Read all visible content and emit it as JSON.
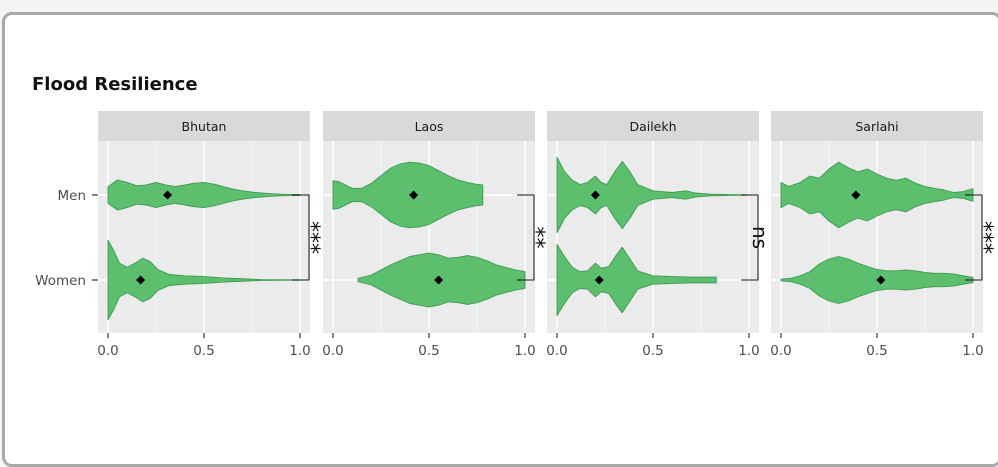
{
  "chart_data": {
    "type": "violin",
    "title": "Flood Resilience",
    "categories": [
      "Men",
      "Women"
    ],
    "xlim": [
      0,
      1
    ],
    "x_ticks": [
      "0.0",
      "0.5",
      "1.0"
    ],
    "grid": true,
    "colors": {
      "fill": "#5cbf6e",
      "outline": "#3f9a52",
      "panel_bg": "#ebebeb",
      "strip_bg": "#d9d9d9",
      "mean_marker": "#000000"
    },
    "panels": [
      {
        "name": "Bhutan",
        "significance": "***",
        "groups": [
          {
            "category": "Men",
            "mean": 0.31,
            "range": [
              0,
              1
            ],
            "density": [
              [
                0,
                0.2
              ],
              [
                0.05,
                0.36
              ],
              [
                0.1,
                0.3
              ],
              [
                0.15,
                0.22
              ],
              [
                0.2,
                0.24
              ],
              [
                0.25,
                0.3
              ],
              [
                0.3,
                0.24
              ],
              [
                0.35,
                0.2
              ],
              [
                0.4,
                0.24
              ],
              [
                0.45,
                0.28
              ],
              [
                0.5,
                0.3
              ],
              [
                0.55,
                0.26
              ],
              [
                0.6,
                0.2
              ],
              [
                0.65,
                0.14
              ],
              [
                0.7,
                0.1
              ],
              [
                0.75,
                0.07
              ],
              [
                0.8,
                0.05
              ],
              [
                0.85,
                0.03
              ],
              [
                0.9,
                0.02
              ],
              [
                0.95,
                0.015
              ],
              [
                1,
                0.01
              ]
            ]
          },
          {
            "category": "Women",
            "mean": 0.17,
            "range": [
              0,
              1
            ],
            "density": [
              [
                0,
                0.95
              ],
              [
                0.03,
                0.7
              ],
              [
                0.06,
                0.4
              ],
              [
                0.1,
                0.3
              ],
              [
                0.14,
                0.4
              ],
              [
                0.18,
                0.52
              ],
              [
                0.22,
                0.44
              ],
              [
                0.26,
                0.25
              ],
              [
                0.32,
                0.13
              ],
              [
                0.4,
                0.1
              ],
              [
                0.5,
                0.08
              ],
              [
                0.6,
                0.05
              ],
              [
                0.7,
                0.03
              ],
              [
                0.8,
                0.01
              ],
              [
                1,
                0.005
              ]
            ]
          }
        ]
      },
      {
        "name": "Laos",
        "significance": "**",
        "groups": [
          {
            "category": "Men",
            "mean": 0.42,
            "range": [
              0,
              0.78
            ],
            "density": [
              [
                0,
                0.34
              ],
              [
                0.03,
                0.32
              ],
              [
                0.1,
                0.16
              ],
              [
                0.15,
                0.16
              ],
              [
                0.2,
                0.28
              ],
              [
                0.25,
                0.46
              ],
              [
                0.3,
                0.64
              ],
              [
                0.35,
                0.74
              ],
              [
                0.4,
                0.78
              ],
              [
                0.45,
                0.76
              ],
              [
                0.5,
                0.7
              ],
              [
                0.55,
                0.58
              ],
              [
                0.6,
                0.46
              ],
              [
                0.65,
                0.36
              ],
              [
                0.7,
                0.3
              ],
              [
                0.74,
                0.26
              ],
              [
                0.78,
                0.24
              ]
            ]
          },
          {
            "category": "Women",
            "mean": 0.55,
            "range": [
              0.13,
              1
            ],
            "density": [
              [
                0.13,
                0.04
              ],
              [
                0.2,
                0.12
              ],
              [
                0.3,
                0.36
              ],
              [
                0.4,
                0.56
              ],
              [
                0.45,
                0.6
              ],
              [
                0.5,
                0.64
              ],
              [
                0.55,
                0.6
              ],
              [
                0.6,
                0.52
              ],
              [
                0.65,
                0.54
              ],
              [
                0.7,
                0.58
              ],
              [
                0.75,
                0.54
              ],
              [
                0.8,
                0.46
              ],
              [
                0.85,
                0.36
              ],
              [
                0.9,
                0.3
              ],
              [
                0.95,
                0.24
              ],
              [
                1,
                0.2
              ]
            ]
          }
        ]
      },
      {
        "name": "Dailekh",
        "significance": "ns",
        "groups": [
          {
            "category": "Men",
            "mean": 0.2,
            "range": [
              0,
              1
            ],
            "density": [
              [
                0,
                0.9
              ],
              [
                0.04,
                0.55
              ],
              [
                0.08,
                0.35
              ],
              [
                0.12,
                0.25
              ],
              [
                0.16,
                0.3
              ],
              [
                0.2,
                0.45
              ],
              [
                0.23,
                0.3
              ],
              [
                0.26,
                0.25
              ],
              [
                0.3,
                0.55
              ],
              [
                0.34,
                0.8
              ],
              [
                0.38,
                0.55
              ],
              [
                0.42,
                0.25
              ],
              [
                0.5,
                0.1
              ],
              [
                0.6,
                0.06
              ],
              [
                0.67,
                0.1
              ],
              [
                0.72,
                0.05
              ],
              [
                0.8,
                0.02
              ],
              [
                0.9,
                0.01
              ],
              [
                1,
                0.005
              ]
            ]
          },
          {
            "category": "Women",
            "mean": 0.22,
            "range": [
              0,
              0.83
            ],
            "density": [
              [
                0,
                0.85
              ],
              [
                0.04,
                0.55
              ],
              [
                0.08,
                0.3
              ],
              [
                0.12,
                0.2
              ],
              [
                0.16,
                0.22
              ],
              [
                0.2,
                0.4
              ],
              [
                0.23,
                0.28
              ],
              [
                0.27,
                0.32
              ],
              [
                0.31,
                0.6
              ],
              [
                0.34,
                0.78
              ],
              [
                0.38,
                0.5
              ],
              [
                0.42,
                0.22
              ],
              [
                0.5,
                0.1
              ],
              [
                0.6,
                0.08
              ],
              [
                0.7,
                0.07
              ],
              [
                0.8,
                0.07
              ],
              [
                0.83,
                0.07
              ]
            ]
          }
        ]
      },
      {
        "name": "Sarlahi",
        "significance": "***",
        "groups": [
          {
            "category": "Men",
            "mean": 0.39,
            "range": [
              0,
              1
            ],
            "density": [
              [
                0,
                0.3
              ],
              [
                0.04,
                0.2
              ],
              [
                0.1,
                0.3
              ],
              [
                0.15,
                0.45
              ],
              [
                0.2,
                0.4
              ],
              [
                0.25,
                0.62
              ],
              [
                0.3,
                0.78
              ],
              [
                0.35,
                0.65
              ],
              [
                0.4,
                0.55
              ],
              [
                0.45,
                0.62
              ],
              [
                0.5,
                0.5
              ],
              [
                0.55,
                0.4
              ],
              [
                0.6,
                0.35
              ],
              [
                0.65,
                0.4
              ],
              [
                0.7,
                0.28
              ],
              [
                0.75,
                0.2
              ],
              [
                0.8,
                0.16
              ],
              [
                0.85,
                0.12
              ],
              [
                0.9,
                0.06
              ],
              [
                0.95,
                0.08
              ],
              [
                1,
                0.15
              ]
            ]
          },
          {
            "category": "Women",
            "mean": 0.52,
            "range": [
              0,
              1
            ],
            "density": [
              [
                0,
                0.02
              ],
              [
                0.05,
                0.04
              ],
              [
                0.1,
                0.1
              ],
              [
                0.15,
                0.2
              ],
              [
                0.2,
                0.38
              ],
              [
                0.25,
                0.5
              ],
              [
                0.3,
                0.56
              ],
              [
                0.35,
                0.5
              ],
              [
                0.4,
                0.4
              ],
              [
                0.45,
                0.32
              ],
              [
                0.5,
                0.25
              ],
              [
                0.55,
                0.22
              ],
              [
                0.6,
                0.22
              ],
              [
                0.65,
                0.24
              ],
              [
                0.7,
                0.22
              ],
              [
                0.75,
                0.18
              ],
              [
                0.8,
                0.16
              ],
              [
                0.85,
                0.16
              ],
              [
                0.9,
                0.14
              ],
              [
                0.95,
                0.1
              ],
              [
                1,
                0.06
              ]
            ]
          }
        ]
      }
    ]
  }
}
